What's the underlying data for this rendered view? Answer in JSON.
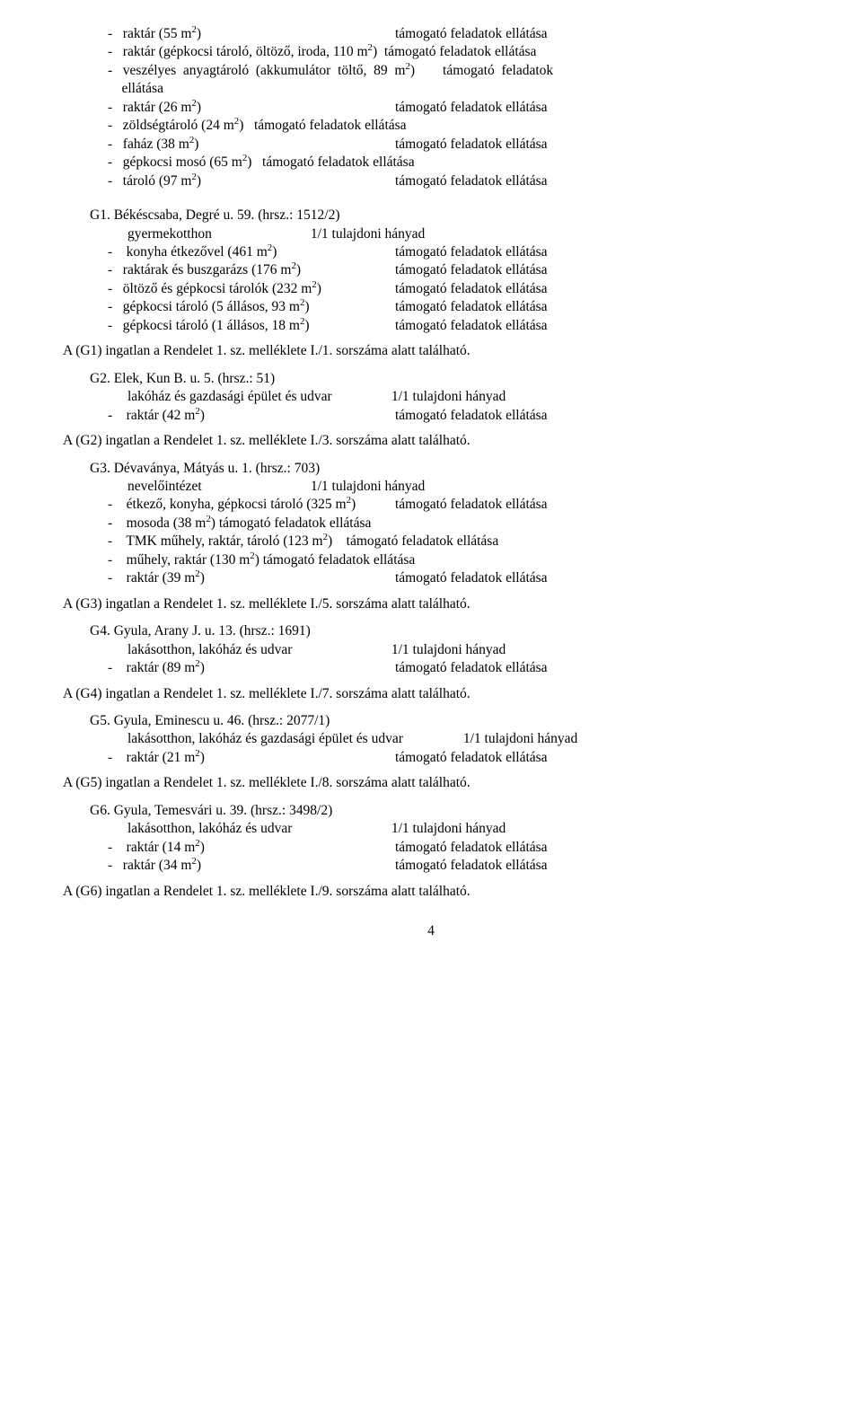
{
  "font": {
    "family": "Times New Roman",
    "size_pt": 12,
    "color": "#000000"
  },
  "background_color": "#ffffff",
  "page_number": "4",
  "intro": {
    "items": [
      {
        "a": "-   raktár (55 m",
        "b": ")",
        "c": "támogató feladatok ellátása"
      },
      {
        "a": "-   raktár (gépkocsi tároló, öltöző, iroda, 110 m",
        "b": ")  támogató feladatok ellátása"
      },
      {
        "a": "-   veszélyes  anyagtároló  (akkumulátor  töltő,  89  m",
        "b": ")        támogató  feladatok"
      },
      {
        "a": "    ellátása"
      },
      {
        "a": "-   raktár (26 m",
        "b": ")",
        "c": "támogató feladatok ellátása"
      },
      {
        "a": "-   zöldségtároló (24 m",
        "b": ")   támogató feladatok ellátása"
      },
      {
        "a": "-   faház (38 m",
        "b": ")",
        "c": "támogató feladatok ellátása"
      },
      {
        "a": "-   gépkocsi mosó (65 m",
        "b": ")   támogató feladatok ellátása"
      },
      {
        "a": "-   tároló (97 m",
        "b": ")",
        "c": "támogató feladatok ellátása"
      }
    ]
  },
  "G1": {
    "hdr1": "G1.   Békéscsaba, Degré u. 59. (hrsz.: 1512/2)",
    "hdr2a": "gyermekotthon",
    "hdr2b": "1/1 tulajdoni hányad",
    "items": [
      {
        "a": "-    konyha étkezővel (461 m",
        "b": ")",
        "c": "támogató feladatok ellátása"
      },
      {
        "a": "-   raktárak és buszgarázs (176 m",
        "b": ")",
        "c": "támogató feladatok ellátása"
      },
      {
        "a": "-   öltöző és gépkocsi tárolók (232 m",
        "b": ")",
        "c": "támogató feladatok ellátása"
      },
      {
        "a": "-   gépkocsi tároló (5 állásos, 93 m",
        "b": ")",
        "c": "támogató feladatok ellátása"
      },
      {
        "a": "-   gépkocsi tároló (1 állásos, 18 m",
        "b": ")",
        "c": "támogató feladatok ellátása"
      }
    ],
    "foot": "A (G1) ingatlan a Rendelet 1. sz. melléklete I./1. sorszáma alatt található."
  },
  "G2": {
    "hdr1": "G2.   Elek, Kun B. u. 5. (hrsz.: 51)",
    "hdr2a": "lakóház és gazdasági épület és udvar",
    "hdr2b": "1/1 tulajdoni hányad",
    "items": [
      {
        "a": "-    raktár (42 m",
        "b": ")",
        "c": "támogató feladatok ellátása"
      }
    ],
    "foot": "A (G2) ingatlan a Rendelet 1. sz. melléklete I./3. sorszáma alatt található."
  },
  "G3": {
    "hdr1": "G3.   Dévaványa, Mátyás u. 1. (hrsz.: 703)",
    "hdr2a": "nevelőintézet",
    "hdr2b": "1/1 tulajdoni hányad",
    "items": [
      {
        "a": "-    étkező, konyha, gépkocsi tároló (325 m",
        "b": ")",
        "c": "támogató feladatok ellátása"
      },
      {
        "a": "-    mosoda (38 m",
        "b": ") támogató feladatok ellátása"
      },
      {
        "a": "-    TMK műhely, raktár, tároló (123 m",
        "b": ")    támogató feladatok ellátása"
      },
      {
        "a": "-    műhely, raktár (130 m",
        "b": ") támogató feladatok ellátása"
      },
      {
        "a": "-    raktár (39 m",
        "b": ")",
        "c": "támogató feladatok ellátása"
      }
    ],
    "foot": "A (G3) ingatlan a Rendelet 1. sz. melléklete I./5. sorszáma alatt található."
  },
  "G4": {
    "hdr1": "G4.   Gyula, Arany J. u. 13. (hrsz.: 1691)",
    "hdr2a": "lakásotthon, lakóház és udvar",
    "hdr2b": "1/1 tulajdoni hányad",
    "items": [
      {
        "a": "-    raktár (89 m",
        "b": ")",
        "c": "támogató feladatok ellátása"
      }
    ],
    "foot": "A (G4) ingatlan a Rendelet 1. sz. melléklete I./7. sorszáma alatt található."
  },
  "G5": {
    "hdr1": "G5.   Gyula, Eminescu u. 46. (hrsz.: 2077/1)",
    "hdr2a": "lakásotthon, lakóház és gazdasági épület és udvar",
    "hdr2b": "1/1 tulajdoni hányad",
    "items": [
      {
        "a": "-    raktár (21 m",
        "b": ")",
        "c": "támogató feladatok ellátása"
      }
    ],
    "foot": "A (G5) ingatlan a Rendelet 1. sz. melléklete I./8. sorszáma alatt található."
  },
  "G6": {
    "hdr1": "G6.   Gyula, Temesvári u. 39. (hrsz.: 3498/2)",
    "hdr2a": "lakásotthon, lakóház és udvar",
    "hdr2b": "1/1 tulajdoni hányad",
    "items": [
      {
        "a": "-    raktár (14 m",
        "b": ")",
        "c": "támogató feladatok ellátása"
      },
      {
        "a": "-   raktár (34 m",
        "b": ")",
        "c": "támogató feladatok ellátása"
      }
    ],
    "foot": "A (G6) ingatlan a Rendelet 1. sz. melléklete I./9. sorszáma alatt található."
  }
}
